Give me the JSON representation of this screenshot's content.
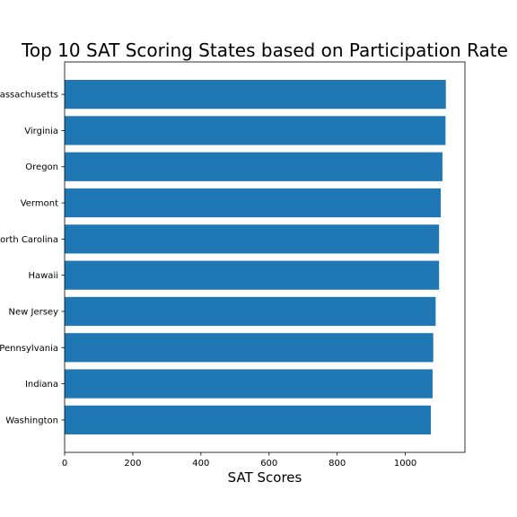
{
  "chart_data": {
    "type": "bar",
    "orientation": "horizontal",
    "title": "Top 10 SAT Scoring States based on Participation Rate",
    "xlabel": "SAT Scores",
    "ylabel": "",
    "categories": [
      "Massachusetts",
      "Virginia",
      "Oregon",
      "Vermont",
      "North Carolina",
      "Hawaii",
      "New Jersey",
      "Pennsylvania",
      "Indiana",
      "Washington"
    ],
    "values": [
      1119,
      1118,
      1109,
      1104,
      1099,
      1099,
      1089,
      1082,
      1080,
      1075
    ],
    "xlim": [
      0,
      1175
    ],
    "xticks": [
      0,
      200,
      400,
      600,
      800,
      1000
    ],
    "bar_color": "#1f77b4",
    "grid": false,
    "legend": "none"
  }
}
